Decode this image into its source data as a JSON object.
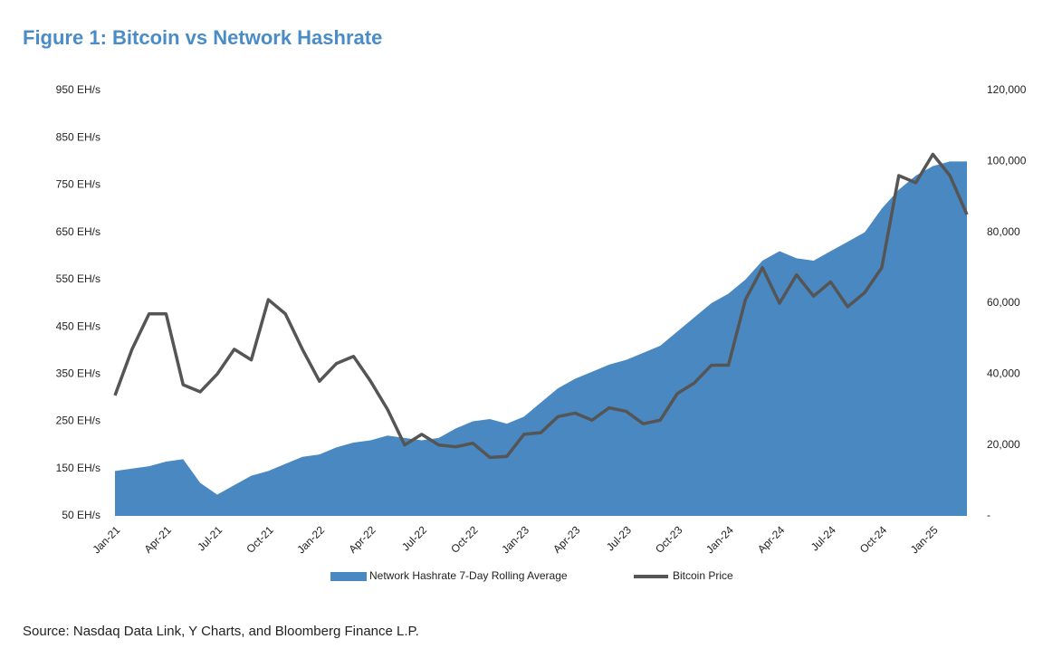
{
  "chart_data": {
    "type": "combo",
    "title": "Figure 1: Bitcoin vs Network Hashrate",
    "source": "Source: Nasdaq Data Link, Y Charts, and Bloomberg Finance L.P.",
    "categories": [
      "Jan-21",
      null,
      null,
      "Apr-21",
      null,
      null,
      "Jul-21",
      null,
      null,
      "Oct-21",
      null,
      null,
      "Jan-22",
      null,
      null,
      "Apr-22",
      null,
      null,
      "Jul-22",
      null,
      null,
      "Oct-22",
      null,
      null,
      "Jan-23",
      null,
      null,
      "Apr-23",
      null,
      null,
      "Jul-23",
      null,
      null,
      "Oct-23",
      null,
      null,
      "Jan-24",
      null,
      null,
      "Apr-24",
      null,
      null,
      "Jul-24",
      null,
      null,
      "Oct-24",
      null,
      null,
      "Jan-25",
      null,
      null
    ],
    "series": [
      {
        "name": "Network Hashrate 7-Day Rolling Average",
        "type": "area",
        "color": "#4a88c2",
        "values": [
          145,
          150,
          155,
          165,
          170,
          120,
          95,
          115,
          135,
          145,
          160,
          175,
          180,
          195,
          205,
          210,
          220,
          215,
          210,
          215,
          235,
          250,
          255,
          245,
          260,
          290,
          320,
          340,
          355,
          370,
          380,
          395,
          410,
          440,
          470,
          500,
          520,
          550,
          590,
          610,
          595,
          590,
          610,
          630,
          650,
          700,
          740,
          770,
          790,
          800,
          800
        ]
      },
      {
        "name": "Bitcoin Price",
        "type": "line",
        "axis": "y2",
        "color": "#555555",
        "values": [
          34000,
          47000,
          57000,
          57000,
          37000,
          35000,
          40000,
          47000,
          44000,
          61000,
          57000,
          47000,
          38000,
          43000,
          45000,
          38000,
          30000,
          20000,
          23000,
          20000,
          19500,
          20500,
          16500,
          16800,
          23000,
          23500,
          28000,
          29000,
          27000,
          30500,
          29500,
          26000,
          27000,
          34500,
          37500,
          42500,
          42500,
          61000,
          70000,
          60000,
          68000,
          62000,
          66000,
          59000,
          63000,
          70000,
          96000,
          94000,
          102000,
          96000,
          85000
        ]
      }
    ],
    "ylim": [
      50,
      950
    ],
    "yticks": [
      {
        "value": 50,
        "label": "50 EH/s"
      },
      {
        "value": 150,
        "label": "150 EH/s"
      },
      {
        "value": 250,
        "label": "250 EH/s"
      },
      {
        "value": 350,
        "label": "350 EH/s"
      },
      {
        "value": 450,
        "label": "450 EH/s"
      },
      {
        "value": 550,
        "label": "550 EH/s"
      },
      {
        "value": 650,
        "label": "650 EH/s"
      },
      {
        "value": 750,
        "label": "750 EH/s"
      },
      {
        "value": 850,
        "label": "850 EH/s"
      },
      {
        "value": 950,
        "label": "950 EH/s"
      }
    ],
    "y2lim": [
      0,
      120000
    ],
    "y2ticks": [
      {
        "value": 0,
        "label": "-"
      },
      {
        "value": 20000,
        "label": "20,000"
      },
      {
        "value": 40000,
        "label": "40,000"
      },
      {
        "value": 60000,
        "label": "60,000"
      },
      {
        "value": 80000,
        "label": "80,000"
      },
      {
        "value": 100000,
        "label": "100,000"
      },
      {
        "value": 120000,
        "label": "120,000"
      }
    ],
    "grid": false
  }
}
